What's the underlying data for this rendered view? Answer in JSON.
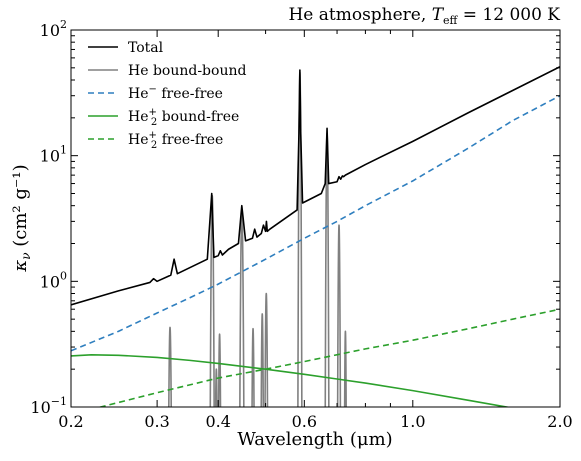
{
  "chart_data": {
    "type": "line",
    "title": {
      "prefix": "He atmosphere, ",
      "teff_symbol": "T",
      "teff_sub": "eff",
      "teff_value": " = 12 000 K"
    },
    "xlabel": "Wavelength (μm)",
    "ylabel": {
      "base": "κ",
      "sub": "ν",
      "units": " (cm² g⁻¹)"
    },
    "x_scale": "log",
    "y_scale": "log",
    "xlim": [
      0.2,
      2.0
    ],
    "ylim": [
      0.1,
      100
    ],
    "x_ticks": [
      {
        "value": 0.2,
        "label": "0.2"
      },
      {
        "value": 0.3,
        "label": "0.3"
      },
      {
        "value": 0.4,
        "label": "0.4"
      },
      {
        "value": 0.6,
        "label": "0.6"
      },
      {
        "value": 1.0,
        "label": "1.0"
      },
      {
        "value": 2.0,
        "label": "2.0"
      }
    ],
    "y_ticks": [
      {
        "value": 0.1,
        "base": "10",
        "exp": "−1"
      },
      {
        "value": 1,
        "base": "10",
        "exp": "0"
      },
      {
        "value": 10,
        "base": "10",
        "exp": "1"
      },
      {
        "value": 100,
        "base": "10",
        "exp": "2"
      }
    ],
    "legend_position": "top-left",
    "series": [
      {
        "name": "Total",
        "legend": {
          "text": "Total"
        },
        "color": "#000000",
        "dash": "solid",
        "x": [
          0.2,
          0.25,
          0.29,
          0.295,
          0.3,
          0.32,
          0.325,
          0.33,
          0.38,
          0.388,
          0.392,
          0.4,
          0.404,
          0.408,
          0.42,
          0.44,
          0.447,
          0.455,
          0.47,
          0.475,
          0.48,
          0.49,
          0.495,
          0.5,
          0.502,
          0.504,
          0.51,
          0.58,
          0.585,
          0.5876,
          0.59,
          0.595,
          0.65,
          0.662,
          0.6678,
          0.673,
          0.7,
          0.7065,
          0.712,
          0.718,
          0.722,
          0.728,
          0.8,
          1.0,
          1.3,
          1.6,
          2.0
        ],
        "y": [
          0.65,
          0.84,
          0.98,
          1.05,
          1.0,
          1.12,
          1.5,
          1.15,
          1.5,
          5.0,
          1.55,
          1.6,
          1.75,
          1.62,
          1.8,
          2.0,
          4.0,
          2.1,
          2.2,
          2.6,
          2.25,
          2.4,
          2.8,
          2.5,
          3.0,
          2.5,
          2.6,
          3.7,
          15.0,
          48.0,
          15.0,
          4.2,
          5.0,
          6.0,
          16.5,
          6.0,
          6.2,
          6.8,
          6.5,
          6.9,
          6.8,
          7.0,
          8.5,
          13.0,
          22.0,
          33.0,
          51.0
        ]
      },
      {
        "name": "He bound-bound",
        "legend": {
          "text": "He bound-bound"
        },
        "color": "#808080",
        "dash": "solid",
        "lines": [
          {
            "center": 0.3188,
            "peak": 0.43,
            "width": 0.0015
          },
          {
            "center": 0.3889,
            "peak": 4.8,
            "width": 0.0018
          },
          {
            "center": 0.3965,
            "peak": 0.2,
            "width": 0.0015
          },
          {
            "center": 0.4026,
            "peak": 0.38,
            "width": 0.0015
          },
          {
            "center": 0.4471,
            "peak": 3.6,
            "width": 0.0022
          },
          {
            "center": 0.4713,
            "peak": 0.42,
            "width": 0.0018
          },
          {
            "center": 0.4922,
            "peak": 0.55,
            "width": 0.0018
          },
          {
            "center": 0.5016,
            "peak": 0.8,
            "width": 0.002
          },
          {
            "center": 0.5876,
            "peak": 46.0,
            "width": 0.0022
          },
          {
            "center": 0.6678,
            "peak": 15.0,
            "width": 0.0025
          },
          {
            "center": 0.7065,
            "peak": 2.8,
            "width": 0.0025
          },
          {
            "center": 0.7281,
            "peak": 0.4,
            "width": 0.0022
          }
        ]
      },
      {
        "name": "He⁻ free-free",
        "legend": {
          "base": "He",
          "sup": "−",
          "rest": " free-free"
        },
        "color": "#2f7fbf",
        "dash": "dashed",
        "x": [
          0.2,
          0.25,
          0.3,
          0.35,
          0.4,
          0.5,
          0.6,
          0.7,
          0.8,
          1.0,
          1.3,
          1.6,
          2.0
        ],
        "y": [
          0.28,
          0.4,
          0.56,
          0.74,
          0.95,
          1.5,
          2.2,
          3.0,
          4.0,
          6.3,
          11.5,
          19.0,
          30.0
        ]
      },
      {
        "name": "He₂⁺ bound-free",
        "legend": {
          "base": "He",
          "sub": "2",
          "sup": "+",
          "rest": " bound-free"
        },
        "color": "#2ca02c",
        "dash": "solid",
        "x": [
          0.2,
          0.22,
          0.25,
          0.3,
          0.35,
          0.4,
          0.5,
          0.6,
          0.7,
          0.8,
          1.0,
          1.3,
          1.6,
          2.0
        ],
        "y": [
          0.255,
          0.26,
          0.258,
          0.248,
          0.235,
          0.222,
          0.2,
          0.182,
          0.167,
          0.155,
          0.135,
          0.113,
          0.098,
          0.085
        ]
      },
      {
        "name": "He₂⁺ free-free",
        "legend": {
          "base": "He",
          "sub": "2",
          "sup": "+",
          "rest": " free-free"
        },
        "color": "#2ca02c",
        "dash": "dashed",
        "x": [
          0.2,
          0.23,
          0.3,
          0.4,
          0.5,
          0.6,
          0.8,
          1.0,
          1.3,
          1.6,
          2.0
        ],
        "y": [
          0.085,
          0.1,
          0.13,
          0.17,
          0.2,
          0.23,
          0.29,
          0.34,
          0.42,
          0.5,
          0.6
        ]
      }
    ]
  }
}
